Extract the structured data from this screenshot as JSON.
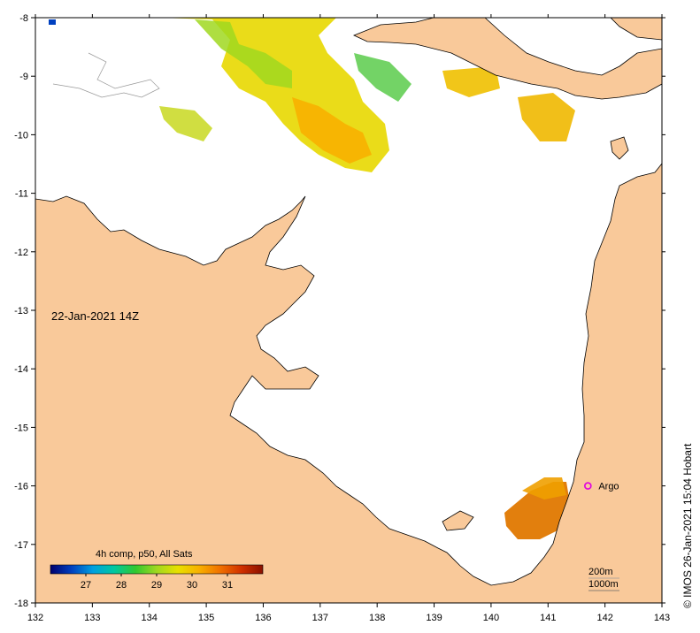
{
  "map": {
    "date_label": "22-Jan-2021 14Z",
    "x_ticks": [
      "132",
      "133",
      "134",
      "135",
      "136",
      "137",
      "138",
      "139",
      "140",
      "141",
      "142",
      "143"
    ],
    "y_ticks": [
      "-8",
      "-9",
      "-10",
      "-11",
      "-12",
      "-13",
      "-14",
      "-15",
      "-16",
      "-17",
      "-18"
    ],
    "lon_range": [
      132,
      143
    ],
    "lat_range": [
      -18,
      -8
    ],
    "land_color": "#f9c99a",
    "sea_color": "#ffffff"
  },
  "legend": {
    "title": "4h comp, p50, All Sats",
    "ticks": [
      "27",
      "28",
      "29",
      "30",
      "31"
    ],
    "range": [
      26,
      32
    ],
    "colors": [
      "#00006e",
      "#0040c0",
      "#00a0e0",
      "#00c8a0",
      "#30c830",
      "#a0d820",
      "#e8e000",
      "#f8b000",
      "#f07000",
      "#d03000",
      "#8a1000"
    ]
  },
  "argo": {
    "label": "Argo",
    "lon": 141.7,
    "lat": -16.0,
    "color": "#e000e0"
  },
  "depth_contours": {
    "labels": [
      "200m",
      "1000m"
    ]
  },
  "credit": {
    "text": "© IMOS 26-Jan-2021 15:04 Hobart"
  }
}
